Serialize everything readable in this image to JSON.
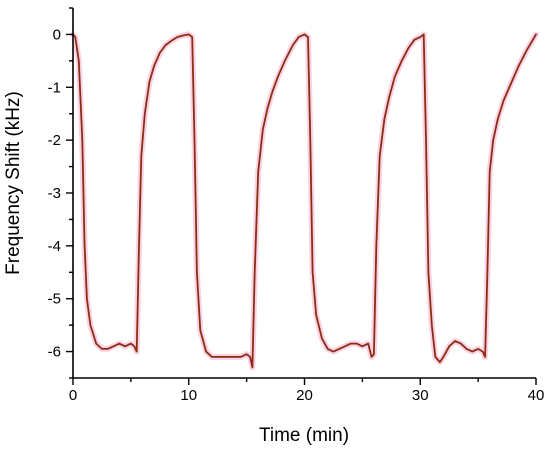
{
  "chart_data": {
    "type": "line",
    "title": "",
    "xlabel": "Time (min)",
    "ylabel": "Frequency Shift (kHz)",
    "xlim": [
      0,
      40
    ],
    "ylim": [
      -6.5,
      0.5
    ],
    "x_ticks": [
      "0",
      "10",
      "20",
      "30",
      "40"
    ],
    "y_ticks": [
      "0",
      "-1",
      "-2",
      "-3",
      "-4",
      "-5",
      "-6"
    ],
    "grid": false,
    "legend": "none",
    "colors": {
      "line": "#8c2d12",
      "halo": "#f7c8df",
      "axis": "#000000"
    },
    "series": [
      {
        "x": [
          0,
          0.2,
          0.5,
          0.8,
          1.0,
          1.2,
          1.5,
          2.0,
          2.5,
          3.0,
          3.5,
          4.0,
          4.5,
          5.0,
          5.3,
          5.5,
          5.7,
          5.9,
          6.2,
          6.6,
          7.0,
          7.5,
          8.0,
          8.5,
          9.0,
          9.5,
          10.0,
          10.3,
          10.5,
          10.7,
          11.0,
          11.5,
          12.0,
          12.5,
          13.0,
          13.5,
          14.0,
          14.5,
          15.0,
          15.3,
          15.5,
          15.7,
          16.0,
          16.4,
          16.8,
          17.2,
          17.7,
          18.3,
          19.0,
          19.5,
          20.0,
          20.3,
          20.5,
          20.7,
          21.0,
          21.5,
          22.0,
          22.5,
          23.0,
          23.5,
          24.0,
          24.5,
          25.0,
          25.5,
          25.8,
          26.0,
          26.2,
          26.5,
          26.9,
          27.3,
          27.8,
          28.4,
          29.0,
          29.5,
          30.0,
          30.3,
          30.5,
          30.7,
          31.0,
          31.3,
          31.7,
          32.0,
          32.5,
          33.0,
          33.5,
          34.0,
          34.5,
          35.0,
          35.4,
          35.6,
          35.8,
          36.0,
          36.3,
          36.7,
          37.2,
          37.8,
          38.5,
          39.2,
          40.0
        ],
        "y": [
          0,
          -0.05,
          -0.5,
          -2.0,
          -4.0,
          -5.0,
          -5.5,
          -5.85,
          -5.95,
          -5.95,
          -5.9,
          -5.85,
          -5.9,
          -5.85,
          -5.9,
          -6.0,
          -4.0,
          -2.3,
          -1.5,
          -0.9,
          -0.6,
          -0.35,
          -0.2,
          -0.12,
          -0.05,
          -0.02,
          0.0,
          -0.05,
          -2.0,
          -4.5,
          -5.6,
          -6.0,
          -6.1,
          -6.1,
          -6.1,
          -6.1,
          -6.1,
          -6.1,
          -6.05,
          -6.1,
          -6.3,
          -4.5,
          -2.6,
          -1.8,
          -1.4,
          -1.1,
          -0.8,
          -0.5,
          -0.2,
          -0.05,
          0.0,
          -0.05,
          -2.0,
          -4.5,
          -5.3,
          -5.75,
          -5.95,
          -6.0,
          -5.95,
          -5.9,
          -5.85,
          -5.85,
          -5.9,
          -5.85,
          -6.1,
          -6.05,
          -4.0,
          -2.3,
          -1.6,
          -1.2,
          -0.8,
          -0.5,
          -0.25,
          -0.1,
          -0.05,
          0.0,
          -2.0,
          -4.5,
          -5.5,
          -6.1,
          -6.2,
          -6.1,
          -5.9,
          -5.8,
          -5.85,
          -5.95,
          -6.0,
          -5.95,
          -6.0,
          -6.1,
          -4.5,
          -2.6,
          -2.0,
          -1.6,
          -1.25,
          -0.95,
          -0.6,
          -0.3,
          0.0
        ]
      }
    ]
  }
}
